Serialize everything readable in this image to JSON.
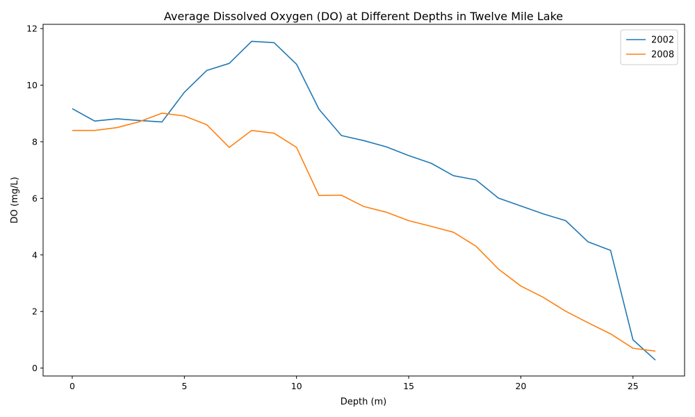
{
  "chart_data": {
    "type": "line",
    "title": "Average Dissolved Oxygen (DO) at Different Depths in Twelve Mile Lake",
    "xlabel": "Depth (m)",
    "ylabel": "DO (mg/L)",
    "xlim": [
      -1.3,
      27.3
    ],
    "ylim": [
      -0.28,
      12.15
    ],
    "xticks": [
      0,
      5,
      10,
      15,
      20,
      25
    ],
    "yticks": [
      0,
      2,
      4,
      6,
      8,
      10,
      12
    ],
    "grid": false,
    "legend": "top-right",
    "x": [
      0,
      1,
      2,
      3,
      4,
      5,
      6,
      7,
      8,
      9,
      10,
      11,
      12,
      13,
      14,
      15,
      16,
      17,
      18,
      19,
      20,
      21,
      22,
      23,
      24,
      25,
      26
    ],
    "series": [
      {
        "name": "2002",
        "color": "#1f77b4",
        "values": [
          9.17,
          8.73,
          8.81,
          8.75,
          8.7,
          9.75,
          10.52,
          10.77,
          11.55,
          11.5,
          10.74,
          9.15,
          8.22,
          8.04,
          7.82,
          7.51,
          7.24,
          6.8,
          6.65,
          6.01,
          5.73,
          5.45,
          5.21,
          4.46,
          4.16,
          1.0,
          0.28
        ]
      },
      {
        "name": "2008",
        "color": "#ff7f0e",
        "values": [
          8.4,
          8.4,
          8.5,
          8.71,
          9.01,
          8.91,
          8.6,
          7.8,
          8.4,
          8.3,
          7.8,
          6.1,
          6.11,
          5.71,
          5.51,
          5.21,
          5.01,
          4.8,
          4.31,
          3.5,
          2.9,
          2.5,
          2.01,
          1.6,
          1.21,
          0.7,
          0.6
        ]
      }
    ]
  }
}
